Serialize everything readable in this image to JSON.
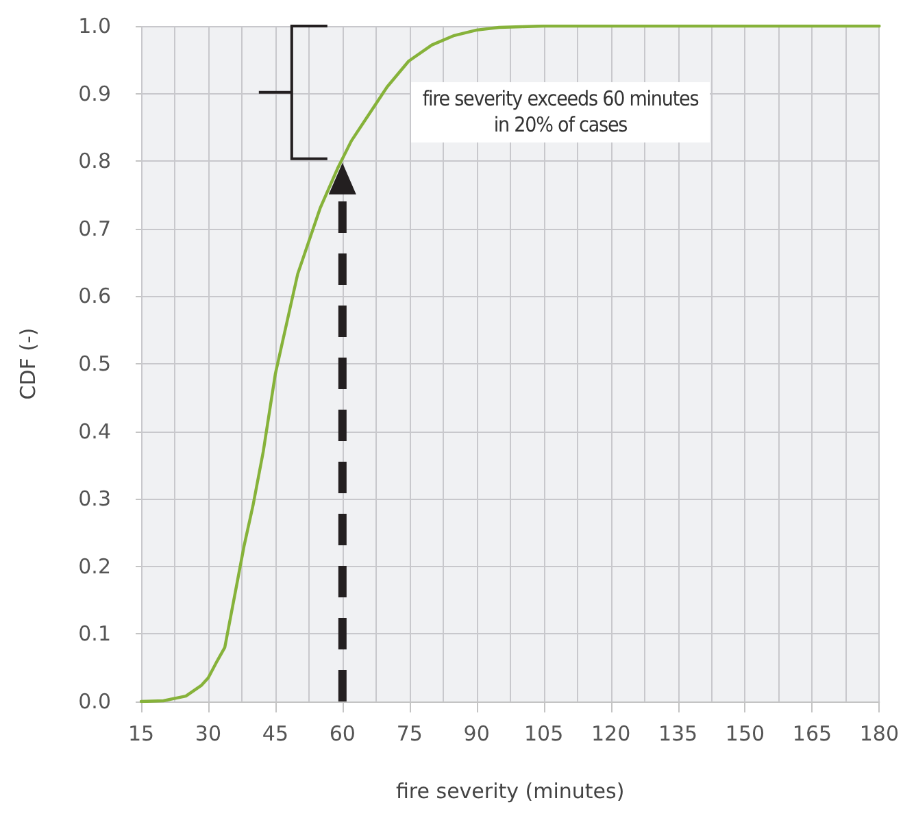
{
  "chart_data": {
    "type": "line",
    "xlabel": "fire severity (minutes)",
    "ylabel": "CDF (-)",
    "x": [
      15,
      20,
      25,
      28.5,
      30,
      32,
      33.7,
      36,
      38,
      40,
      42.3,
      45,
      50,
      55,
      58.9,
      62,
      65,
      70,
      74.8,
      80,
      85,
      90,
      95,
      100,
      105,
      120,
      150,
      180
    ],
    "series": [
      {
        "color": "#86b23a",
        "values": [
          0,
          0.001,
          0.008,
          0.024,
          0.035,
          0.06,
          0.08,
          0.16,
          0.23,
          0.29,
          0.37,
          0.485,
          0.633,
          0.73,
          0.789,
          0.83,
          0.86,
          0.91,
          0.948,
          0.972,
          0.986,
          0.994,
          0.998,
          0.999,
          1,
          1,
          1,
          1
        ]
      }
    ],
    "xlim": [
      15,
      180
    ],
    "xticks": [
      15,
      30,
      45,
      60,
      75,
      90,
      105,
      120,
      135,
      150,
      165,
      180
    ],
    "ylim": [
      0,
      1
    ],
    "yticks": [
      {
        "value": 0,
        "label": "0.0"
      },
      {
        "value": 0.1,
        "label": "0.1"
      },
      {
        "value": 0.2,
        "label": "0.2"
      },
      {
        "value": 0.3,
        "label": "0.3"
      },
      {
        "value": 0.4,
        "label": "0.4"
      },
      {
        "value": 0.5,
        "label": "0.5"
      },
      {
        "value": 0.6,
        "label": "0.6"
      },
      {
        "value": 0.7,
        "label": "0.7"
      },
      {
        "value": 0.8,
        "label": "0.8"
      },
      {
        "value": 0.9,
        "label": "0.9"
      },
      {
        "value": 1,
        "label": "1.0"
      }
    ],
    "annotations": [
      "fire severity exceeds 60 minutes in 20% of cases"
    ],
    "ref_lines": [
      {
        "axis": "x",
        "value": 60,
        "color": "#231f20",
        "line_style": "dashed"
      }
    ],
    "grid": true,
    "marker": "none",
    "line_style": "solid"
  }
}
